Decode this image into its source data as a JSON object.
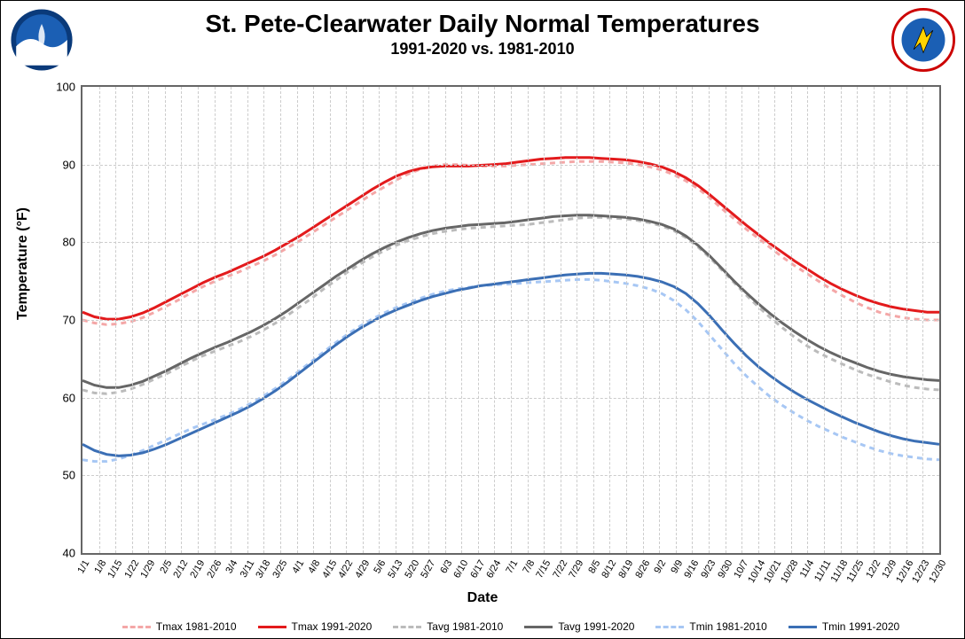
{
  "title": "St. Pete-Clearwater Daily Normal Temperatures",
  "subtitle": "1991-2020 vs. 1981-2010",
  "y_axis_label": "Temperature (°F)",
  "x_axis_label": "Date",
  "chart": {
    "type": "line",
    "background_color": "#ffffff",
    "grid_color": "#cccccc",
    "border_color": "#666666",
    "ylim": [
      40,
      100
    ],
    "ytick_step": 10,
    "yticks": [
      40,
      50,
      60,
      70,
      80,
      90,
      100
    ],
    "xticks": [
      "1/1",
      "1/8",
      "1/15",
      "1/22",
      "1/29",
      "2/5",
      "2/12",
      "2/19",
      "2/26",
      "3/4",
      "3/11",
      "3/18",
      "3/25",
      "4/1",
      "4/8",
      "4/15",
      "4/22",
      "4/29",
      "5/6",
      "5/13",
      "5/20",
      "5/27",
      "6/3",
      "6/10",
      "6/17",
      "6/24",
      "7/1",
      "7/8",
      "7/15",
      "7/22",
      "7/29",
      "8/5",
      "8/12",
      "8/19",
      "8/26",
      "9/2",
      "9/9",
      "9/16",
      "9/23",
      "9/30",
      "10/7",
      "10/14",
      "10/21",
      "10/28",
      "11/4",
      "11/11",
      "11/18",
      "11/25",
      "12/2",
      "12/9",
      "12/16",
      "12/23",
      "12/30"
    ],
    "title_fontsize": 28,
    "subtitle_fontsize": 18,
    "label_fontsize": 16,
    "tick_fontsize": 12,
    "legend_fontsize": 12,
    "line_width_solid": 3,
    "line_width_dashed": 3,
    "series": [
      {
        "name": "Tmax 1981-2010",
        "color": "#f4a7a7",
        "dash": "6,5",
        "values": [
          70.0,
          69.6,
          69.4,
          69.5,
          69.8,
          70.3,
          71.0,
          71.8,
          72.6,
          73.5,
          74.3,
          75.0,
          75.6,
          76.2,
          76.9,
          77.6,
          78.4,
          79.3,
          80.2,
          81.2,
          82.2,
          83.2,
          84.2,
          85.2,
          86.2,
          87.1,
          88.0,
          88.8,
          89.4,
          89.8,
          90.0,
          90.0,
          89.9,
          89.8,
          89.8,
          89.8,
          89.9,
          90.0,
          90.1,
          90.2,
          90.3,
          90.4,
          90.4,
          90.4,
          90.3,
          90.2,
          90.0,
          89.7,
          89.3,
          88.7,
          87.9,
          86.9,
          85.7,
          84.3,
          83.0,
          81.7,
          80.5,
          79.3,
          78.1,
          77.0,
          76.0,
          75.0,
          74.0,
          73.1,
          72.3,
          71.6,
          71.0,
          70.6,
          70.3,
          70.1,
          70.0,
          70.0
        ]
      },
      {
        "name": "Tmax 1991-2020",
        "color": "#e31a1c",
        "dash": null,
        "values": [
          71.0,
          70.4,
          70.1,
          70.1,
          70.4,
          70.9,
          71.6,
          72.4,
          73.2,
          74.0,
          74.8,
          75.5,
          76.1,
          76.8,
          77.5,
          78.2,
          79.0,
          79.9,
          80.8,
          81.8,
          82.8,
          83.8,
          84.8,
          85.8,
          86.8,
          87.7,
          88.5,
          89.1,
          89.5,
          89.7,
          89.8,
          89.8,
          89.8,
          89.9,
          90.0,
          90.1,
          90.3,
          90.5,
          90.7,
          90.8,
          90.9,
          90.9,
          90.9,
          90.8,
          90.7,
          90.6,
          90.4,
          90.1,
          89.7,
          89.1,
          88.3,
          87.3,
          86.1,
          84.8,
          83.5,
          82.2,
          81.0,
          79.8,
          78.7,
          77.6,
          76.6,
          75.6,
          74.7,
          73.9,
          73.2,
          72.6,
          72.1,
          71.7,
          71.4,
          71.2,
          71.0,
          71.0
        ]
      },
      {
        "name": "Tavg 1981-2010",
        "color": "#bbbbbb",
        "dash": "6,5",
        "values": [
          61.0,
          60.6,
          60.5,
          60.7,
          61.1,
          61.7,
          62.4,
          63.1,
          63.9,
          64.7,
          65.4,
          66.0,
          66.6,
          67.2,
          67.9,
          68.7,
          69.6,
          70.6,
          71.7,
          72.8,
          74.0,
          75.1,
          76.2,
          77.2,
          78.1,
          78.9,
          79.6,
          80.2,
          80.7,
          81.1,
          81.4,
          81.6,
          81.8,
          81.9,
          82.0,
          82.1,
          82.2,
          82.3,
          82.5,
          82.7,
          82.9,
          83.1,
          83.2,
          83.2,
          83.1,
          83.0,
          82.8,
          82.5,
          82.1,
          81.5,
          80.6,
          79.4,
          78.0,
          76.4,
          74.8,
          73.2,
          71.7,
          70.3,
          69.0,
          67.8,
          66.7,
          65.8,
          65.0,
          64.3,
          63.6,
          63.0,
          62.5,
          62.0,
          61.6,
          61.3,
          61.1,
          61.0
        ]
      },
      {
        "name": "Tavg 1991-2020",
        "color": "#666666",
        "dash": null,
        "values": [
          62.2,
          61.6,
          61.3,
          61.3,
          61.6,
          62.1,
          62.8,
          63.5,
          64.3,
          65.1,
          65.8,
          66.5,
          67.1,
          67.8,
          68.5,
          69.3,
          70.2,
          71.2,
          72.3,
          73.4,
          74.5,
          75.6,
          76.6,
          77.6,
          78.5,
          79.3,
          80.0,
          80.6,
          81.1,
          81.5,
          81.8,
          82.0,
          82.2,
          82.3,
          82.4,
          82.5,
          82.7,
          82.9,
          83.1,
          83.3,
          83.4,
          83.5,
          83.5,
          83.4,
          83.3,
          83.2,
          83.0,
          82.7,
          82.3,
          81.7,
          80.8,
          79.6,
          78.2,
          76.6,
          75.0,
          73.5,
          72.1,
          70.8,
          69.6,
          68.5,
          67.5,
          66.6,
          65.8,
          65.1,
          64.5,
          63.9,
          63.4,
          63.0,
          62.7,
          62.5,
          62.3,
          62.2
        ]
      },
      {
        "name": "Tmin 1981-2010",
        "color": "#a7c7f4",
        "dash": "6,5",
        "values": [
          52.0,
          51.8,
          51.8,
          52.1,
          52.6,
          53.2,
          53.9,
          54.6,
          55.3,
          56.0,
          56.6,
          57.2,
          57.8,
          58.5,
          59.3,
          60.2,
          61.2,
          62.3,
          63.5,
          64.7,
          65.9,
          67.1,
          68.2,
          69.2,
          70.1,
          70.9,
          71.6,
          72.2,
          72.8,
          73.3,
          73.7,
          74.0,
          74.2,
          74.4,
          74.5,
          74.6,
          74.7,
          74.8,
          74.9,
          75.0,
          75.1,
          75.2,
          75.2,
          75.1,
          74.9,
          74.7,
          74.4,
          74.0,
          73.4,
          72.5,
          71.3,
          69.8,
          68.0,
          66.2,
          64.4,
          62.8,
          61.4,
          60.1,
          59.0,
          58.0,
          57.1,
          56.3,
          55.6,
          54.9,
          54.3,
          53.7,
          53.2,
          52.8,
          52.5,
          52.3,
          52.1,
          52.0
        ]
      },
      {
        "name": "Tmin 1991-2020",
        "color": "#3b6fb5",
        "dash": null,
        "values": [
          54.0,
          53.2,
          52.7,
          52.5,
          52.6,
          52.9,
          53.4,
          54.0,
          54.7,
          55.4,
          56.1,
          56.8,
          57.5,
          58.2,
          59.0,
          59.9,
          60.9,
          62.0,
          63.2,
          64.4,
          65.6,
          66.8,
          67.9,
          68.9,
          69.8,
          70.6,
          71.3,
          71.9,
          72.5,
          73.0,
          73.4,
          73.8,
          74.1,
          74.4,
          74.6,
          74.8,
          75.0,
          75.2,
          75.4,
          75.6,
          75.8,
          75.9,
          76.0,
          76.0,
          75.9,
          75.8,
          75.6,
          75.3,
          74.9,
          74.3,
          73.4,
          72.1,
          70.5,
          68.7,
          67.0,
          65.4,
          64.0,
          62.8,
          61.7,
          60.7,
          59.8,
          59.0,
          58.2,
          57.5,
          56.8,
          56.2,
          55.6,
          55.1,
          54.7,
          54.4,
          54.2,
          54.0
        ]
      }
    ]
  },
  "legend": [
    {
      "label": "Tmax 1981-2010",
      "color": "#f4a7a7",
      "dashed": true
    },
    {
      "label": "Tmax 1991-2020",
      "color": "#e31a1c",
      "dashed": false
    },
    {
      "label": "Tavg 1981-2010",
      "color": "#bbbbbb",
      "dashed": true
    },
    {
      "label": "Tavg 1991-2020",
      "color": "#666666",
      "dashed": false
    },
    {
      "label": "Tmin 1981-2010",
      "color": "#a7c7f4",
      "dashed": true
    },
    {
      "label": "Tmin 1991-2020",
      "color": "#3b6fb5",
      "dashed": false
    }
  ],
  "logos": {
    "left": "noaa-logo",
    "right": "nws-logo"
  }
}
